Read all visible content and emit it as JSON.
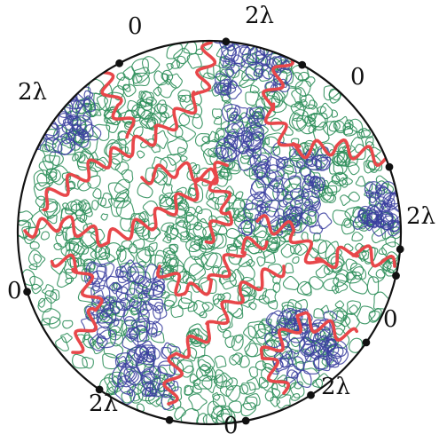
{
  "boundary_labels": [
    "0",
    "2λ",
    "0",
    "2λ",
    "0",
    "2λ",
    "0",
    "2λ",
    "0",
    "2λ"
  ],
  "colors": {
    "outer_boundary": "#111111",
    "boundary_points": "#111111",
    "red_curves": "#e8474a",
    "green_loops": "#2f8f5b",
    "blue_loops": "#3b3fa0",
    "text": "#111111"
  },
  "elements": {
    "outer_circle": "disk-boundary",
    "red_paths": "thick-red-interface",
    "green_paths": "green-loop-ensemble",
    "blue_paths": "blue-loop-clusters"
  }
}
